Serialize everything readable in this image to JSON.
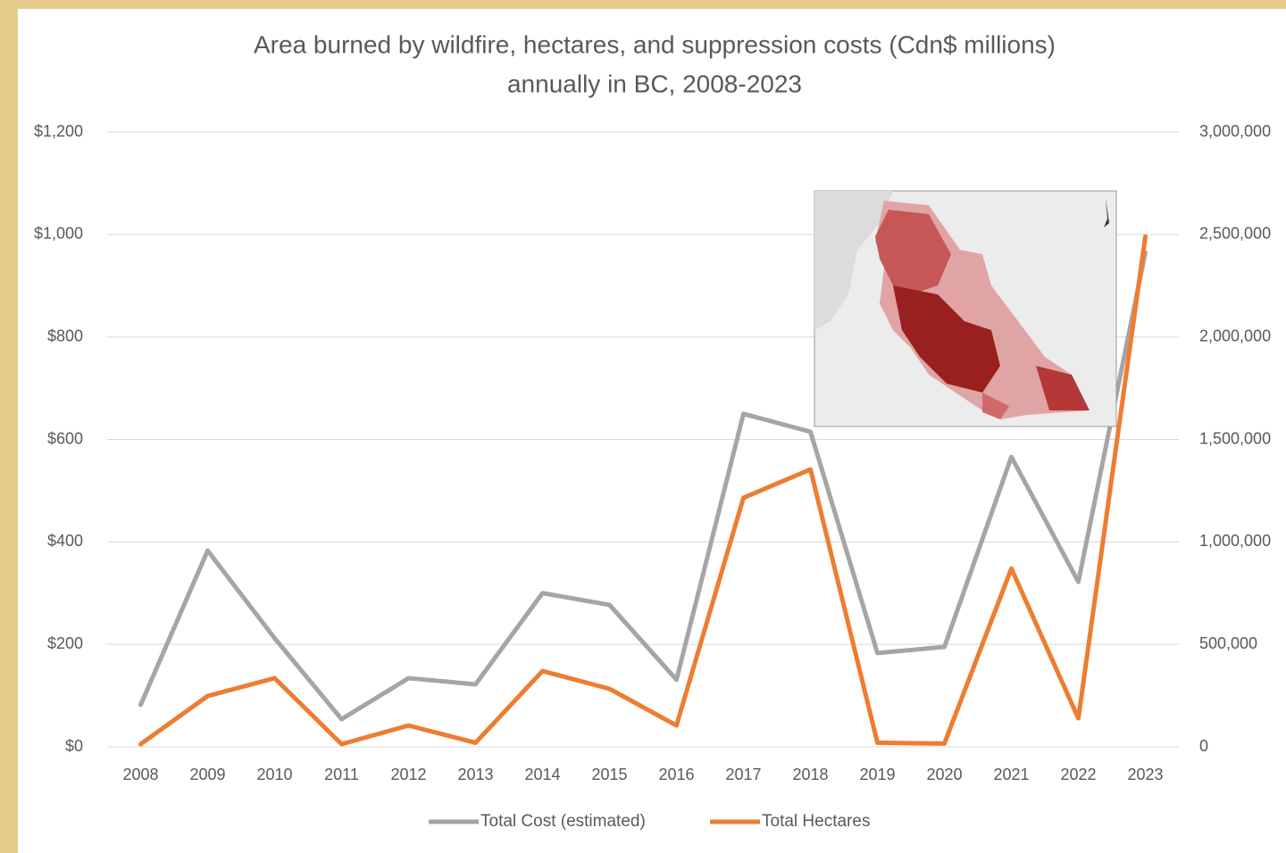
{
  "chart_data": {
    "type": "line",
    "title": [
      "Area burned by wildfire, hectares, and suppression costs (Cdn$ millions)",
      "annually in BC, 2008-2023"
    ],
    "categories": [
      "2008",
      "2009",
      "2010",
      "2011",
      "2012",
      "2013",
      "2014",
      "2015",
      "2016",
      "2017",
      "2018",
      "2019",
      "2020",
      "2021",
      "2022",
      "2023"
    ],
    "series": [
      {
        "name": "Total Cost (estimated)",
        "color": "#a5a5a5",
        "values": [
          82,
          383,
          212,
          54,
          134,
          122,
          300,
          277,
          131,
          650,
          615,
          183,
          195,
          566,
          322,
          965
        ]
      },
      {
        "name": "Total Hectares",
        "color": "#ed7d31",
        "axis": "y2",
        "values": [
          13000,
          248000,
          335000,
          13000,
          104000,
          20000,
          370000,
          283000,
          104000,
          1215000,
          1354000,
          20000,
          16000,
          870000,
          139000,
          2490000
        ]
      }
    ],
    "ylim": [
      0,
      1200
    ],
    "yticks": [
      {
        "value": 0,
        "label": "$0"
      },
      {
        "value": 200,
        "label": "$200"
      },
      {
        "value": 400,
        "label": "$400"
      },
      {
        "value": 600,
        "label": "$600"
      },
      {
        "value": 800,
        "label": "$800"
      },
      {
        "value": 1000,
        "label": "$1,000"
      },
      {
        "value": 1200,
        "label": "$1,200"
      }
    ],
    "y2lim": [
      0,
      3000000
    ],
    "y2ticks": [
      0,
      {
        "value": 500000,
        "label": "500,000"
      },
      {
        "value": 1000000,
        "label": "1,000,000"
      },
      {
        "value": 1500000,
        "label": "1,500,000"
      },
      {
        "value": 2000000,
        "label": "2,000,000"
      },
      {
        "value": 2500000,
        "label": "2,500,000"
      },
      {
        "value": 3000000,
        "label": "3,000,000"
      }
    ],
    "grid": true,
    "legend": "bottom"
  }
}
